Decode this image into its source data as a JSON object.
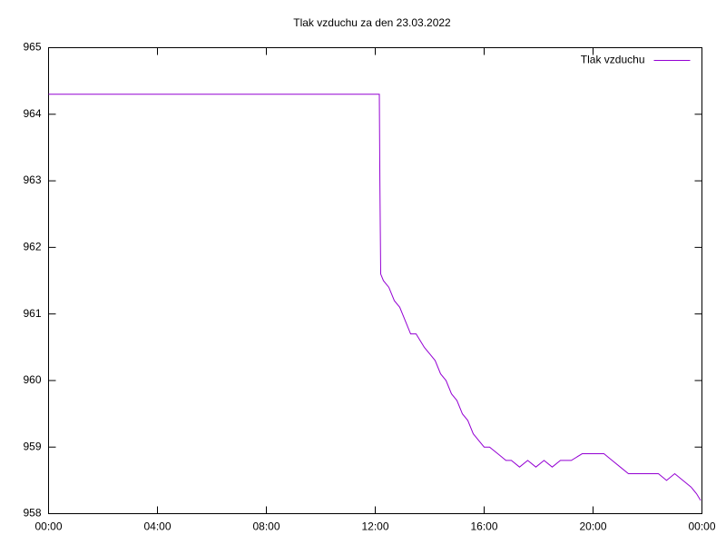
{
  "chart_data": {
    "type": "line",
    "title": "Tlak vzduchu za den 23.03.2022",
    "x": [
      0,
      12.15,
      12.17,
      12.2,
      12.3,
      12.5,
      12.7,
      12.9,
      13.1,
      13.3,
      13.5,
      13.8,
      14.0,
      14.2,
      14.4,
      14.6,
      14.8,
      15.0,
      15.2,
      15.4,
      15.6,
      15.8,
      16.0,
      16.2,
      16.5,
      16.8,
      17.0,
      17.3,
      17.6,
      17.9,
      18.2,
      18.5,
      18.8,
      19.2,
      19.6,
      20.0,
      20.4,
      20.7,
      21.0,
      21.3,
      21.6,
      22.0,
      22.4,
      22.7,
      23.0,
      23.3,
      23.6,
      23.8,
      23.95
    ],
    "series": [
      {
        "name": "Tlak vzduchu",
        "color": "#9400d3",
        "values": [
          964.3,
          964.3,
          963.0,
          961.6,
          961.5,
          961.4,
          961.2,
          961.1,
          960.9,
          960.7,
          960.7,
          960.5,
          960.4,
          960.3,
          960.1,
          960.0,
          959.8,
          959.7,
          959.5,
          959.4,
          959.2,
          959.1,
          959.0,
          959.0,
          958.9,
          958.8,
          958.8,
          958.7,
          958.8,
          958.7,
          958.8,
          958.7,
          958.8,
          958.8,
          958.9,
          958.9,
          958.9,
          958.8,
          958.7,
          958.6,
          958.6,
          958.6,
          958.6,
          958.5,
          958.6,
          958.5,
          958.4,
          958.3,
          958.2
        ]
      }
    ],
    "xlim": [
      0,
      24
    ],
    "xticks": [
      {
        "value": 0,
        "label": "00:00"
      },
      {
        "value": 4,
        "label": "04:00"
      },
      {
        "value": 8,
        "label": "08:00"
      },
      {
        "value": 12,
        "label": "12:00"
      },
      {
        "value": 16,
        "label": "16:00"
      },
      {
        "value": 20,
        "label": "20:00"
      },
      {
        "value": 24,
        "label": "00:00"
      }
    ],
    "ylim": [
      958,
      965
    ],
    "yticks": [
      958,
      959,
      960,
      961,
      962,
      963,
      964,
      965
    ],
    "grid": false,
    "legend": "top-right"
  }
}
